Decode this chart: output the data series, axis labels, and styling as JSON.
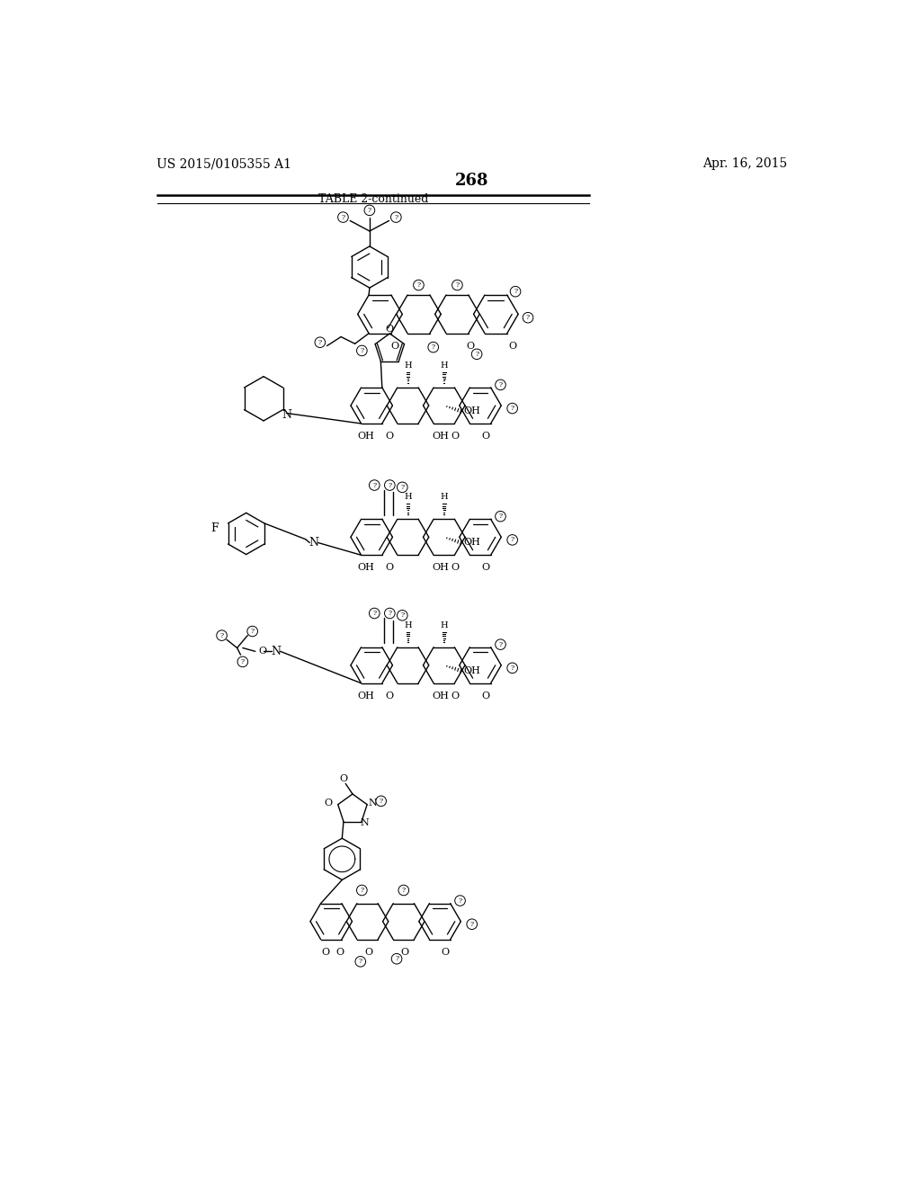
{
  "page_number": "268",
  "patent_number": "US 2015/0105355 A1",
  "patent_date": "Apr. 16, 2015",
  "table_label": "TABLE 2-continued",
  "background_color": "#ffffff",
  "text_color": "#000000",
  "line_color": "#000000",
  "line_width": 1.0
}
